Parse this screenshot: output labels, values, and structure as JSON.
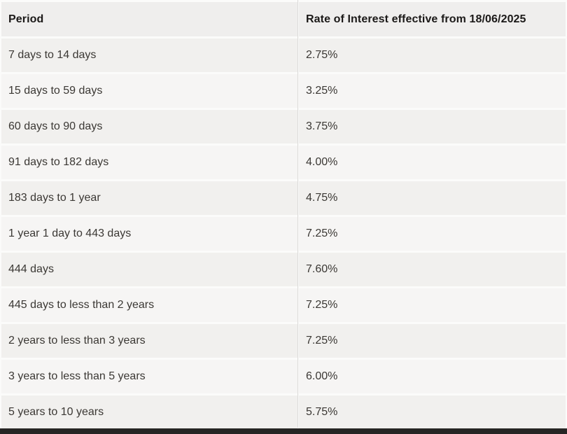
{
  "table": {
    "columns": [
      {
        "label": "Period"
      },
      {
        "label": "Rate of Interest effective from 18/06/2025"
      }
    ],
    "rows": [
      {
        "period": "7 days to 14 days",
        "rate": "2.75%"
      },
      {
        "period": "15 days to 59 days",
        "rate": "3.25%"
      },
      {
        "period": "60 days to 90 days",
        "rate": "3.75%"
      },
      {
        "period": "91 days to 182 days",
        "rate": "4.00%"
      },
      {
        "period": "183 days to 1 year",
        "rate": "4.75%"
      },
      {
        "period": "1 year 1 day to 443 days",
        "rate": "7.25%"
      },
      {
        "period": "444 days",
        "rate": "7.60%"
      },
      {
        "period": "445 days to less than 2 years",
        "rate": "7.25%"
      },
      {
        "period": "2 years to less than 3 years",
        "rate": "7.25%"
      },
      {
        "period": "3 years to less than 5 years",
        "rate": "6.00%"
      },
      {
        "period": "5 years to 10 years",
        "rate": "5.75%"
      }
    ]
  },
  "colors": {
    "page_bg": "#fbfbfa",
    "header_bg": "#efeeed",
    "row_odd_bg": "#f1f0ee",
    "row_even_bg": "#f6f5f4",
    "divider_line": "#dbdad8",
    "header_text": "#1b1918",
    "body_text": "#3b3834",
    "footer_bar": "#262524"
  }
}
